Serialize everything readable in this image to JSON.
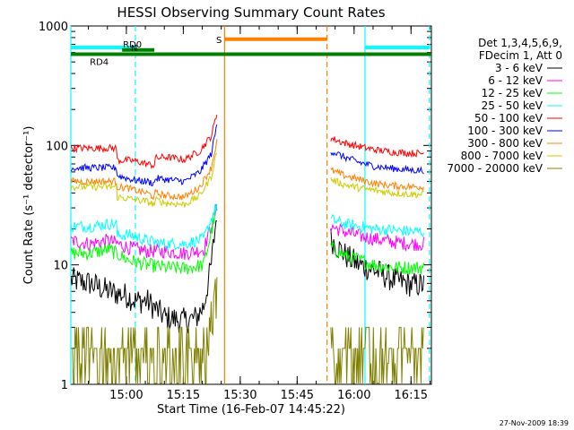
{
  "chart_data": {
    "type": "line",
    "title": "HESSI Observing Summary Count Rates",
    "xlabel": "Start Time (16-Feb-07 14:45:22)",
    "ylabel": "Count Rate (s⁻¹ detector⁻¹)",
    "y_scale": "log",
    "ylim": [
      1,
      1000
    ],
    "x_unit": "minutes since 14:45:22",
    "xlim": [
      0,
      95
    ],
    "x_ticks": [
      {
        "label": "15:00",
        "value": 14.63
      },
      {
        "label": "15:15",
        "value": 29.63
      },
      {
        "label": "15:30",
        "value": 44.63
      },
      {
        "label": "15:45",
        "value": 59.63
      },
      {
        "label": "16:00",
        "value": 74.63
      },
      {
        "label": "16:15",
        "value": 89.63
      }
    ],
    "y_ticks": [
      {
        "label": "1",
        "value": 1
      },
      {
        "label": "10",
        "value": 10
      },
      {
        "label": "100",
        "value": 100
      },
      {
        "label": "1000",
        "value": 1000
      }
    ],
    "legend": {
      "placement": "right",
      "header": [
        "Det 1,3,4,5,6,9,",
        "FDecim 1, Att 0"
      ]
    },
    "series": [
      {
        "name": "3 - 6 keV",
        "color": "#000000",
        "segA": [
          [
            0,
            7.5
          ],
          [
            5,
            7
          ],
          [
            10,
            6
          ],
          [
            15,
            5.5
          ],
          [
            17,
            5
          ],
          [
            20,
            5
          ],
          [
            25,
            3.6
          ],
          [
            30,
            3.4
          ],
          [
            33,
            3.6
          ],
          [
            35,
            4.5
          ],
          [
            37,
            10
          ],
          [
            38.5,
            28
          ]
        ],
        "segB": [
          [
            68.5,
            16.5
          ],
          [
            70,
            14.5
          ],
          [
            73,
            11.5
          ],
          [
            76,
            10
          ],
          [
            80,
            9
          ],
          [
            85,
            7.5
          ],
          [
            90,
            6.8
          ],
          [
            93,
            6.8
          ]
        ]
      },
      {
        "name": "6 - 12 keV",
        "color": "#ff00ff",
        "segA": [
          [
            0,
            16
          ],
          [
            5,
            15
          ],
          [
            10,
            16
          ],
          [
            15,
            14
          ],
          [
            20,
            13
          ],
          [
            25,
            13
          ],
          [
            30,
            12.5
          ],
          [
            35,
            13.5
          ],
          [
            38.5,
            30
          ]
        ],
        "segB": [
          [
            68.5,
            21
          ],
          [
            72,
            19
          ],
          [
            76,
            17.5
          ],
          [
            80,
            16.5
          ],
          [
            85,
            15.5
          ],
          [
            90,
            15
          ],
          [
            93,
            15
          ]
        ]
      },
      {
        "name": "12 - 25 keV",
        "color": "#00ff00",
        "segA": [
          [
            0,
            12.5
          ],
          [
            5,
            12.5
          ],
          [
            10,
            13.5
          ],
          [
            15,
            11
          ],
          [
            20,
            10
          ],
          [
            25,
            9.5
          ],
          [
            30,
            9.3
          ],
          [
            35,
            10
          ],
          [
            38.5,
            30
          ]
        ],
        "segB": [
          [
            68.5,
            14
          ],
          [
            72,
            12
          ],
          [
            76,
            11
          ],
          [
            80,
            10
          ],
          [
            85,
            9.5
          ],
          [
            90,
            9.5
          ],
          [
            93,
            9.5
          ]
        ]
      },
      {
        "name": "25 - 50 keV",
        "color": "#00ffff",
        "segA": [
          [
            0,
            21
          ],
          [
            5,
            21
          ],
          [
            10,
            22
          ],
          [
            12,
            22
          ],
          [
            12.2,
            17.5
          ],
          [
            15,
            18
          ],
          [
            20,
            16
          ],
          [
            22,
            15.5
          ],
          [
            25,
            15
          ],
          [
            30,
            15
          ],
          [
            35,
            16.5
          ],
          [
            38.5,
            32
          ]
        ],
        "segB": [
          [
            68.5,
            24
          ],
          [
            72,
            22
          ],
          [
            76,
            21
          ],
          [
            80,
            20
          ],
          [
            85,
            19.5
          ],
          [
            90,
            19
          ],
          [
            93,
            19
          ]
        ]
      },
      {
        "name": "50 - 100 keV",
        "color": "#ff0000",
        "segA": [
          [
            0,
            95
          ],
          [
            12,
            95
          ],
          [
            12.2,
            75
          ],
          [
            15,
            75
          ],
          [
            17,
            74
          ],
          [
            20,
            70
          ],
          [
            22,
            68
          ],
          [
            22.2,
            78
          ],
          [
            25,
            80
          ],
          [
            30,
            76
          ],
          [
            34,
            90
          ],
          [
            37,
            120
          ],
          [
            38.5,
            185
          ]
        ],
        "segB": [
          [
            68.5,
            115
          ],
          [
            72,
            105
          ],
          [
            76,
            98
          ],
          [
            80,
            92
          ],
          [
            85,
            88
          ],
          [
            90,
            86
          ],
          [
            93,
            86
          ]
        ]
      },
      {
        "name": "100 - 300 keV",
        "color": "#0000ff",
        "segA": [
          [
            0,
            65
          ],
          [
            12,
            65
          ],
          [
            12.2,
            56
          ],
          [
            15,
            53
          ],
          [
            17,
            51
          ],
          [
            20,
            50
          ],
          [
            22,
            48
          ],
          [
            22.2,
            53
          ],
          [
            25,
            52
          ],
          [
            30,
            50
          ],
          [
            34,
            60
          ],
          [
            37,
            85
          ],
          [
            38.5,
            150
          ]
        ],
        "segB": [
          [
            68.5,
            90
          ],
          [
            72,
            80
          ],
          [
            76,
            72
          ],
          [
            80,
            67
          ],
          [
            85,
            64
          ],
          [
            90,
            62
          ],
          [
            93,
            62
          ]
        ]
      },
      {
        "name": "300 - 800 keV",
        "color": "#ff8000",
        "segA": [
          [
            0,
            50
          ],
          [
            12,
            50
          ],
          [
            12.2,
            45
          ],
          [
            15,
            44
          ],
          [
            17,
            42
          ],
          [
            20,
            40
          ],
          [
            22,
            37
          ],
          [
            22.2,
            40
          ],
          [
            25,
            38
          ],
          [
            30,
            37
          ],
          [
            34,
            45
          ],
          [
            37,
            65
          ],
          [
            38.5,
            110
          ]
        ],
        "segB": [
          [
            68.5,
            62
          ],
          [
            72,
            56
          ],
          [
            76,
            52
          ],
          [
            80,
            48
          ],
          [
            85,
            46
          ],
          [
            90,
            45
          ],
          [
            93,
            45
          ]
        ]
      },
      {
        "name": "800 - 7000 keV",
        "color": "#cccc00",
        "segA": [
          [
            0,
            45
          ],
          [
            12,
            45
          ],
          [
            12.2,
            37
          ],
          [
            15,
            36
          ],
          [
            17,
            35
          ],
          [
            20,
            34
          ],
          [
            22,
            32
          ],
          [
            22.2,
            35
          ],
          [
            25,
            33
          ],
          [
            30,
            32
          ],
          [
            34,
            38
          ],
          [
            37,
            55
          ],
          [
            38.5,
            90
          ]
        ],
        "segB": [
          [
            68.5,
            52
          ],
          [
            72,
            47
          ],
          [
            76,
            44
          ],
          [
            80,
            42
          ],
          [
            85,
            40
          ],
          [
            90,
            39
          ],
          [
            93,
            39
          ]
        ]
      },
      {
        "name": "7000 - 20000 keV",
        "color": "#808000",
        "segA": [
          [
            0,
            1.8
          ],
          [
            5,
            1.8
          ],
          [
            8,
            2.2
          ],
          [
            10,
            2
          ],
          [
            15,
            1.9
          ],
          [
            20,
            1.7
          ],
          [
            25,
            1.6
          ],
          [
            30,
            1.7
          ],
          [
            33,
            1.9
          ],
          [
            36,
            2.3
          ],
          [
            37,
            3.5
          ],
          [
            38.5,
            6
          ]
        ],
        "segB": [
          [
            68.5,
            2.2
          ],
          [
            70,
            1.9
          ],
          [
            73,
            1.7
          ],
          [
            76,
            1.6
          ],
          [
            80,
            1.6
          ],
          [
            85,
            1.6
          ],
          [
            90,
            1.6
          ],
          [
            93,
            1.6
          ]
        ]
      }
    ],
    "gaps": [
      [
        38.5,
        68.5
      ]
    ],
    "vertical_markers": [
      {
        "x": 0,
        "color": "#00ffff",
        "style": "solid"
      },
      {
        "x": 17,
        "color": "#00ffff",
        "style": "dashed"
      },
      {
        "x": 77.5,
        "color": "#00ffff",
        "style": "solid"
      },
      {
        "x": 94.5,
        "color": "#00ffff",
        "style": "dashed"
      },
      {
        "x": 40.5,
        "color": "#ff8000",
        "style": "solid"
      },
      {
        "x": 67.5,
        "color": "#ff8000",
        "style": "dashed"
      }
    ],
    "flag_bars": [
      {
        "label": "N",
        "color": "#00ffff",
        "ranges": [
          [
            0,
            17
          ],
          [
            77.5,
            94.5
          ]
        ],
        "level": 660
      },
      {
        "label": "RD0",
        "color": "#008000",
        "ranges": [
          [
            13.5,
            22
          ]
        ],
        "level": 630
      },
      {
        "label": "RD4",
        "color": "#008000",
        "ranges": [
          [
            0,
            95
          ]
        ],
        "level": 580
      },
      {
        "label": "S",
        "color": "#ff8000",
        "ranges": [
          [
            40.5,
            67.5
          ]
        ],
        "level": 775
      }
    ],
    "footer_date": "27-Nov-2009 18:39"
  }
}
